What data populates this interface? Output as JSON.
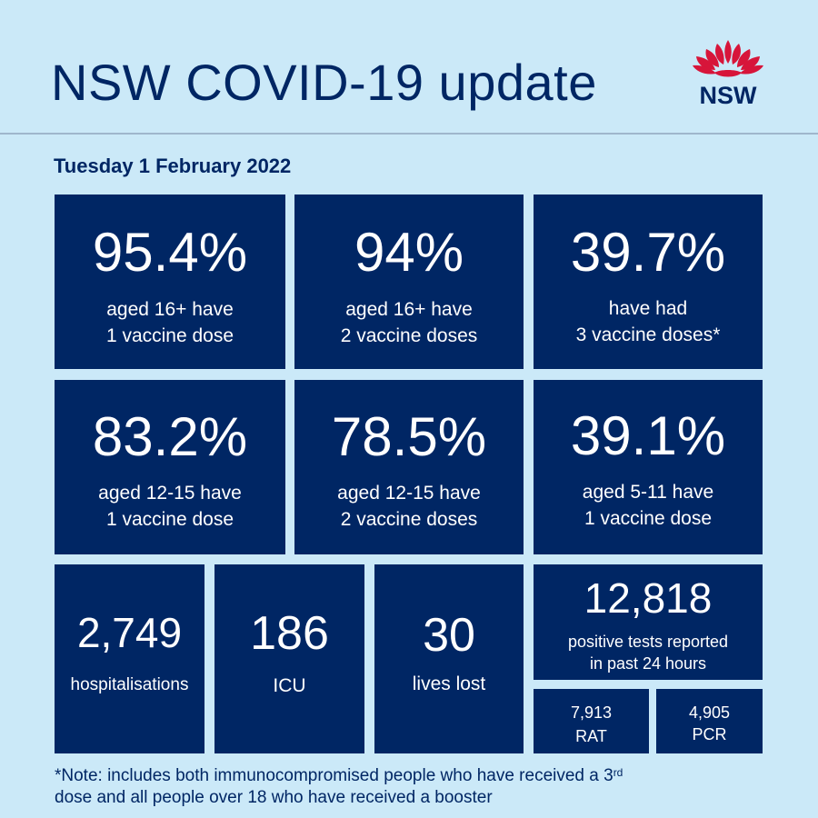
{
  "header": {
    "title": "NSW COVID-19 update",
    "logo_text": "NSW"
  },
  "date": "Tuesday 1 February 2022",
  "vaccination": [
    {
      "value": "95.4%",
      "line1": "aged 16+ have",
      "line2": "1 vaccine dose"
    },
    {
      "value": "94%",
      "line1": "aged 16+ have",
      "line2": "2 vaccine doses"
    },
    {
      "value": "39.7%",
      "line1": "have had",
      "line2": "3 vaccine doses*"
    },
    {
      "value": "83.2%",
      "line1": "aged 12-15 have",
      "line2": "1 vaccine dose"
    },
    {
      "value": "78.5%",
      "line1": "aged 12-15 have",
      "line2": "2 vaccine doses"
    },
    {
      "value": "39.1%",
      "line1": "aged 5-11 have",
      "line2": "1 vaccine dose"
    }
  ],
  "stats": {
    "hospitalisations": {
      "value": "2,749",
      "label": "hospitalisations"
    },
    "icu": {
      "value": "186",
      "label": "ICU"
    },
    "lives_lost": {
      "value": "30",
      "label": "lives lost"
    },
    "positive_tests": {
      "value": "12,818",
      "line1": "positive tests reported",
      "line2": "in past 24 hours"
    },
    "rat": {
      "value": "7,913",
      "label": "RAT"
    },
    "pcr": {
      "value": "4,905",
      "label": "PCR"
    }
  },
  "note": {
    "part1": "*Note: includes both immunocompromised  people who have received a 3",
    "sup": "rd",
    "part2": "dose and all people over 18 who have received a booster"
  },
  "colors": {
    "background": "#cbe9f8",
    "navy": "#002664",
    "waratah_red": "#d7153a"
  },
  "icons": {
    "logo": "waratah-flower-icon"
  }
}
